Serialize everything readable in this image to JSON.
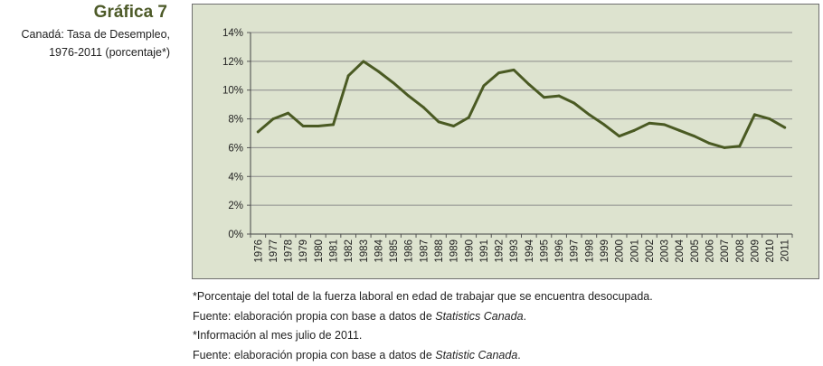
{
  "figure": {
    "label": "Gráfica 7",
    "subtitle_line1": "Canadá: Tasa de Desempleo,",
    "subtitle_line2": "1976-2011 (porcentaje*)"
  },
  "chart_data": {
    "type": "line",
    "title": "Canadá: Tasa de Desempleo, 1976-2011 (porcentaje*)",
    "xlabel": "",
    "ylabel": "",
    "ylim": [
      0,
      14
    ],
    "yticks": [
      0,
      2,
      4,
      6,
      8,
      10,
      12,
      14
    ],
    "ytick_suffix": "%",
    "grid": true,
    "categories": [
      "1976",
      "1977",
      "1978",
      "1979",
      "1980",
      "1981",
      "1982",
      "1983",
      "1984",
      "1985",
      "1986",
      "1987",
      "1988",
      "1989",
      "1990",
      "1991",
      "1992",
      "1993",
      "1994",
      "1995",
      "1996",
      "1997",
      "1998",
      "1999",
      "2000",
      "2001",
      "2002",
      "2003",
      "2004",
      "2005",
      "2006",
      "2007",
      "2008",
      "2009",
      "2010",
      "2011"
    ],
    "series": [
      {
        "name": "Tasa de desempleo",
        "color": "#4a5a23",
        "values": [
          7.1,
          8.0,
          8.4,
          7.5,
          7.5,
          7.6,
          11.0,
          12.0,
          11.3,
          10.5,
          9.6,
          8.8,
          7.8,
          7.5,
          8.1,
          10.3,
          11.2,
          11.4,
          10.4,
          9.5,
          9.6,
          9.1,
          8.3,
          7.6,
          6.8,
          7.2,
          7.7,
          7.6,
          7.2,
          6.8,
          6.3,
          6.0,
          6.1,
          8.3,
          8.0,
          7.4
        ]
      }
    ]
  },
  "notes": {
    "line1": "*Porcentaje del total de la fuerza laboral en edad de trabajar que se encuentra desocupada.",
    "line2_prefix": "Fuente: elaboración propia con base a datos de ",
    "line2_source": "Statistics Canada",
    "line2_suffix": ".",
    "line3": "*Información al mes julio de 2011.",
    "line4_prefix": "Fuente: elaboración propia con base a datos de ",
    "line4_source": "Statistic Canada",
    "line4_suffix": "."
  },
  "colors": {
    "title": "#4d5a28",
    "line": "#4a5a23",
    "plot_background": "#dde3cf",
    "grid": "#8a8a8a"
  }
}
